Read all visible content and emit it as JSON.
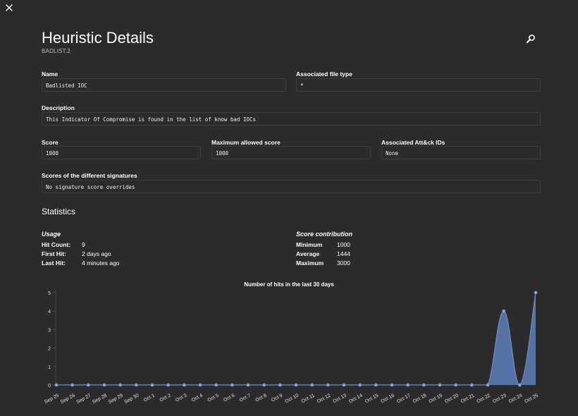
{
  "header": {
    "title": "Heuristic Details",
    "subtitle": "BADLIST.2"
  },
  "icons": {
    "close": "close-icon",
    "search": "search-icon"
  },
  "fields": {
    "name": {
      "label": "Name",
      "value": "Badlisted IOC"
    },
    "file_type": {
      "label": "Associated file type",
      "value": "*"
    },
    "description": {
      "label": "Description",
      "value": "This Indicator Of Compromise is found in the list of know bad IOCs"
    },
    "score": {
      "label": "Score",
      "value": "1000"
    },
    "max_score": {
      "label": "Maximum allowed score",
      "value": "1000"
    },
    "attack_ids": {
      "label": "Associated Att&ck IDs",
      "value": "None"
    },
    "signature_scores": {
      "label": "Scores of the different signatures",
      "value": "No signature score overrides"
    }
  },
  "statistics": {
    "title": "Statistics",
    "usage": {
      "title": "Usage",
      "rows": [
        {
          "key": "Hit Count:",
          "value": "9"
        },
        {
          "key": "First Hit:",
          "value": "2 days ago"
        },
        {
          "key": "Last Hit:",
          "value": "4 minutes ago"
        }
      ]
    },
    "score_contribution": {
      "title": "Score contribution",
      "rows": [
        {
          "key": "Minimum",
          "value": "1000"
        },
        {
          "key": "Average",
          "value": "1444"
        },
        {
          "key": "Maximum",
          "value": "3000"
        }
      ]
    }
  },
  "colors": {
    "accent": "#6e8fc9",
    "fill": "#5b79b0",
    "grid": "#3a3a3a",
    "axis_text": "#e0e0e0"
  },
  "chart_data": {
    "type": "area",
    "title": "Number of hits in the last 30 days",
    "categories": [
      "Sep 25",
      "Sep 26",
      "Sep 27",
      "Sep 28",
      "Sep 29",
      "Sep 30",
      "Oct 1",
      "Oct 2",
      "Oct 3",
      "Oct 4",
      "Oct 5",
      "Oct 6",
      "Oct 7",
      "Oct 8",
      "Oct 9",
      "Oct 10",
      "Oct 11",
      "Oct 12",
      "Oct 13",
      "Oct 14",
      "Oct 15",
      "Oct 16",
      "Oct 17",
      "Oct 18",
      "Oct 19",
      "Oct 20",
      "Oct 21",
      "Oct 22",
      "Oct 23",
      "Oct 24",
      "Oct 25"
    ],
    "values": [
      0,
      0,
      0,
      0,
      0,
      0,
      0,
      0,
      0,
      0,
      0,
      0,
      0,
      0,
      0,
      0,
      0,
      0,
      0,
      0,
      0,
      0,
      0,
      0,
      0,
      0,
      0,
      0,
      4,
      0,
      5
    ],
    "ylim": [
      0,
      5
    ],
    "yticks": [
      "0",
      "1",
      "2",
      "3",
      "4",
      "5"
    ],
    "xlabel": "",
    "ylabel": "",
    "grid": false
  }
}
